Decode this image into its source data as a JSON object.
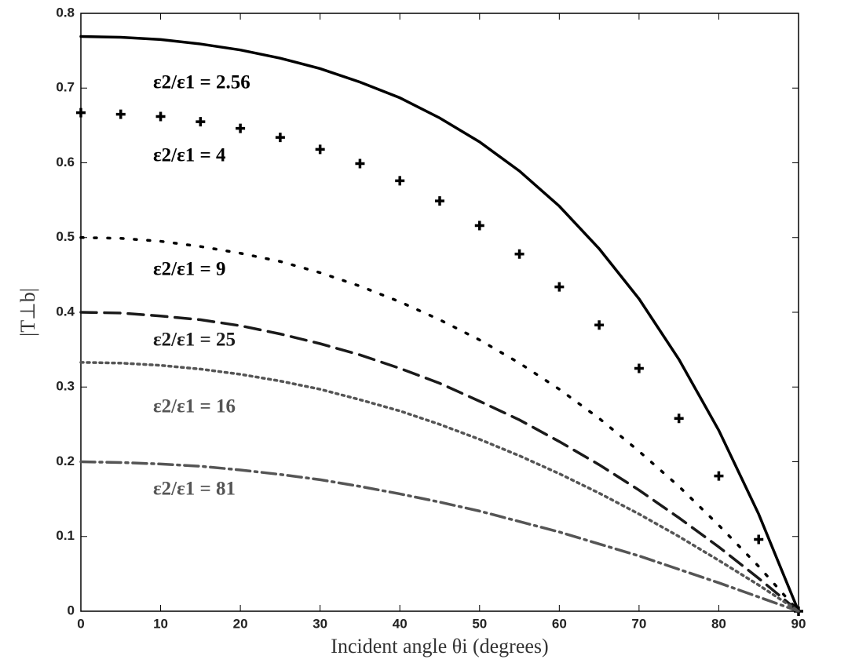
{
  "chart_data": {
    "type": "line",
    "xlabel": "Incident angle θi (degrees)",
    "ylabel": "|T⊥b|",
    "x": [
      0,
      5,
      10,
      15,
      20,
      25,
      30,
      35,
      40,
      45,
      50,
      55,
      60,
      65,
      70,
      75,
      80,
      85,
      90
    ],
    "series": [
      {
        "name": "ε2/ε1 = 2.56",
        "color": "#000000",
        "style": "solid",
        "values": [
          0.769,
          0.768,
          0.765,
          0.759,
          0.751,
          0.74,
          0.726,
          0.708,
          0.687,
          0.66,
          0.628,
          0.589,
          0.542,
          0.485,
          0.418,
          0.337,
          0.242,
          0.13,
          0
        ]
      },
      {
        "name": "ε2/ε1 = 4",
        "color": "#000000",
        "style": "plus",
        "values": [
          0.667,
          0.665,
          0.662,
          0.655,
          0.646,
          0.634,
          0.618,
          0.599,
          0.576,
          0.549,
          0.516,
          0.478,
          0.434,
          0.383,
          0.325,
          0.258,
          0.181,
          0.096,
          0
        ]
      },
      {
        "name": "ε2/ε1 = 9",
        "color": "#000000",
        "style": "dotted",
        "values": [
          0.5,
          0.499,
          0.495,
          0.488,
          0.479,
          0.468,
          0.453,
          0.435,
          0.414,
          0.39,
          0.363,
          0.332,
          0.297,
          0.258,
          0.214,
          0.167,
          0.115,
          0.06,
          0
        ]
      },
      {
        "name": "ε2/ε1 = 25",
        "color": "#1a1a1a",
        "style": "dashed",
        "values": [
          0.4,
          0.399,
          0.395,
          0.39,
          0.382,
          0.371,
          0.358,
          0.343,
          0.325,
          0.305,
          0.281,
          0.256,
          0.227,
          0.196,
          0.162,
          0.125,
          0.086,
          0.044,
          0
        ]
      },
      {
        "name": "ε2/ε1 = 16",
        "color": "#555555",
        "style": "fine-dotted",
        "values": [
          0.333,
          0.332,
          0.329,
          0.324,
          0.317,
          0.308,
          0.297,
          0.283,
          0.268,
          0.25,
          0.23,
          0.208,
          0.184,
          0.158,
          0.13,
          0.1,
          0.068,
          0.035,
          0
        ]
      },
      {
        "name": "ε2/ε1 = 81",
        "color": "#555555",
        "style": "dash-dot",
        "values": [
          0.2,
          0.199,
          0.197,
          0.194,
          0.189,
          0.183,
          0.176,
          0.167,
          0.157,
          0.146,
          0.134,
          0.12,
          0.106,
          0.09,
          0.074,
          0.056,
          0.038,
          0.019,
          0
        ]
      }
    ],
    "xlim": [
      0,
      90
    ],
    "xticks": [
      0,
      10,
      20,
      30,
      40,
      50,
      60,
      70,
      80,
      90
    ],
    "ylim": [
      0,
      0.8
    ],
    "yticks": [
      0,
      0.1,
      0.2,
      0.3,
      0.4,
      0.5,
      0.6,
      0.7,
      0.8
    ],
    "grid": false
  }
}
